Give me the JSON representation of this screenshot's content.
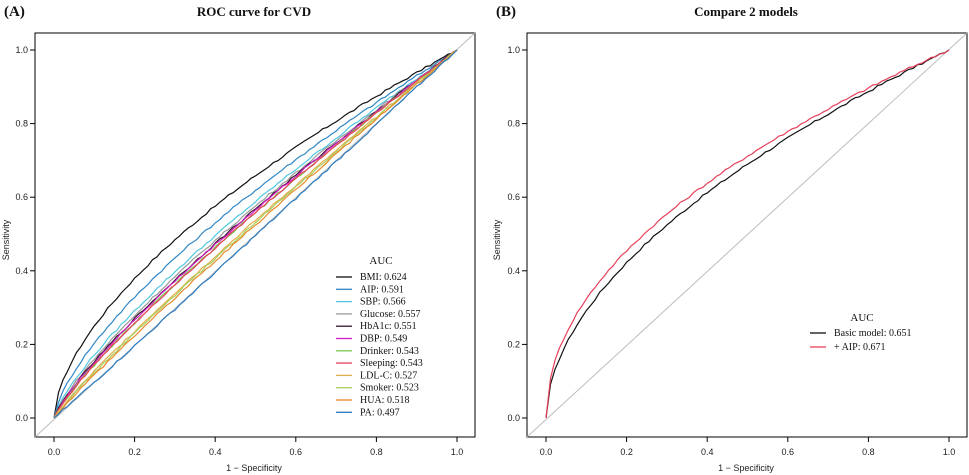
{
  "chart_data": [
    {
      "type": "line",
      "panel_label": "(A)",
      "title": "ROC curve for CVD",
      "xlabel": "1 − Specificity",
      "ylabel": "Sensitivity",
      "xlim": [
        0,
        1
      ],
      "ylim": [
        0,
        1
      ],
      "x_ticks": [
        "0.0",
        "0.2",
        "0.4",
        "0.6",
        "0.8",
        "1.0"
      ],
      "y_ticks": [
        "0.0",
        "0.2",
        "0.4",
        "0.6",
        "0.8",
        "1.0"
      ],
      "reference_line": "diagonal",
      "legend_title": "AUC",
      "legend_position": "bottom-right",
      "series": [
        {
          "name": "BMI",
          "label": "BMI: 0.624",
          "auc": 0.624,
          "color": "#111111"
        },
        {
          "name": "AIP",
          "label": "AIP: 0.591",
          "auc": 0.591,
          "color": "#2f86c6"
        },
        {
          "name": "SBP",
          "label": "SBP: 0.566",
          "auc": 0.566,
          "color": "#4fc8e0"
        },
        {
          "name": "Glucose",
          "label": "Glucose: 0.557",
          "auc": 0.557,
          "color": "#9a9a9a"
        },
        {
          "name": "HbA1c",
          "label": "HbA1c: 0.551",
          "auc": 0.551,
          "color": "#3a1530"
        },
        {
          "name": "DBP",
          "label": "DBP: 0.549",
          "auc": 0.549,
          "color": "#d21bc4"
        },
        {
          "name": "Drinker",
          "label": "Drinker: 0.543",
          "auc": 0.543,
          "color": "#78c850"
        },
        {
          "name": "Sleeping",
          "label": "Sleeping: 0.543",
          "auc": 0.543,
          "color": "#e8405a"
        },
        {
          "name": "LDL-C",
          "label": "LDL-C: 0.527",
          "auc": 0.527,
          "color": "#e0b04a"
        },
        {
          "name": "Smoker",
          "label": "Smoker: 0.523",
          "auc": 0.523,
          "color": "#a8d060"
        },
        {
          "name": "HUA",
          "label": "HUA: 0.518",
          "auc": 0.518,
          "color": "#e88a2a"
        },
        {
          "name": "PA",
          "label": "PA: 0.497",
          "auc": 0.497,
          "color": "#2b7ac0"
        }
      ]
    },
    {
      "type": "line",
      "panel_label": "(B)",
      "title": "Compare 2 models",
      "xlabel": "1 − Specificity",
      "ylabel": "Sensitivity",
      "xlim": [
        0,
        1
      ],
      "ylim": [
        0,
        1
      ],
      "x_ticks": [
        "0.0",
        "0.2",
        "0.4",
        "0.6",
        "0.8",
        "1.0"
      ],
      "y_ticks": [
        "0.0",
        "0.2",
        "0.4",
        "0.6",
        "0.8",
        "1.0"
      ],
      "reference_line": "diagonal",
      "legend_title": "AUC",
      "legend_position": "bottom-right",
      "series": [
        {
          "name": "Basic model",
          "label": "Basic model: 0.651",
          "auc": 0.651,
          "color": "#111111"
        },
        {
          "name": "+ AIP",
          "label": "+ AIP: 0.671",
          "auc": 0.671,
          "color": "#e8405a"
        }
      ]
    }
  ]
}
